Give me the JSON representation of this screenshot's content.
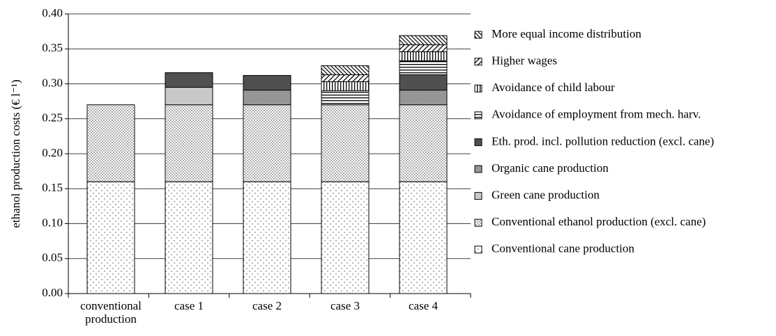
{
  "chart_data": {
    "type": "stacked-bar",
    "ylabel": "ethanol production costs (€ l⁻¹)",
    "categories": [
      "conventional production",
      "case 1",
      "case 2",
      "case 3",
      "case 4"
    ],
    "ylim": [
      0,
      0.4
    ],
    "yticks": [
      {
        "value": 0,
        "label": "0.00"
      },
      {
        "value": 0.05,
        "label": "0.05"
      },
      {
        "value": 0.1,
        "label": "0.10"
      },
      {
        "value": 0.15,
        "label": "0.15"
      },
      {
        "value": 0.2,
        "label": "0.20"
      },
      {
        "value": 0.25,
        "label": "0.25"
      },
      {
        "value": 0.3,
        "label": "0.30"
      },
      {
        "value": 0.35,
        "label": "0.35"
      },
      {
        "value": 0.4,
        "label": "0.40"
      }
    ],
    "grid": true,
    "legend": "right",
    "series": [
      {
        "name": "Conventional cane production",
        "pattern": "dots-sparse",
        "color": "#ffffff",
        "values": [
          0.16,
          0.16,
          0.16,
          0.16,
          0.16
        ]
      },
      {
        "name": "Conventional ethanol production (excl. cane)",
        "pattern": "dots-dense",
        "color": "#ffffff",
        "values": [
          0.11,
          0.11,
          0.11,
          0.11,
          0.11
        ]
      },
      {
        "name": "Green cane production",
        "pattern": "solid",
        "color": "#c8c8c8",
        "values": [
          null,
          0.025,
          null,
          null,
          null
        ]
      },
      {
        "name": "Organic cane production",
        "pattern": "solid",
        "color": "#969696",
        "values": [
          null,
          null,
          0.021,
          null,
          0.021
        ]
      },
      {
        "name": "Eth. prod. incl. pollution reduction (excl. cane)",
        "pattern": "solid",
        "color": "#505050",
        "values": [
          null,
          0.021,
          0.021,
          null,
          0.022
        ]
      },
      {
        "name": "Avoidance of employment from mech. harv.",
        "pattern": "horizontal",
        "color": "#ffffff",
        "values": [
          null,
          null,
          null,
          0.02,
          0.02
        ]
      },
      {
        "name": "Avoidance of child labour",
        "pattern": "vertical",
        "color": "#ffffff",
        "values": [
          null,
          null,
          null,
          0.013,
          0.013
        ]
      },
      {
        "name": "Higher wages",
        "pattern": "diagonal",
        "color": "#ffffff",
        "values": [
          null,
          null,
          null,
          0.01,
          0.01
        ]
      },
      {
        "name": "More equal income distribution",
        "pattern": "backdiagonal",
        "color": "#ffffff",
        "values": [
          null,
          null,
          null,
          0.013,
          0.013
        ]
      }
    ]
  }
}
